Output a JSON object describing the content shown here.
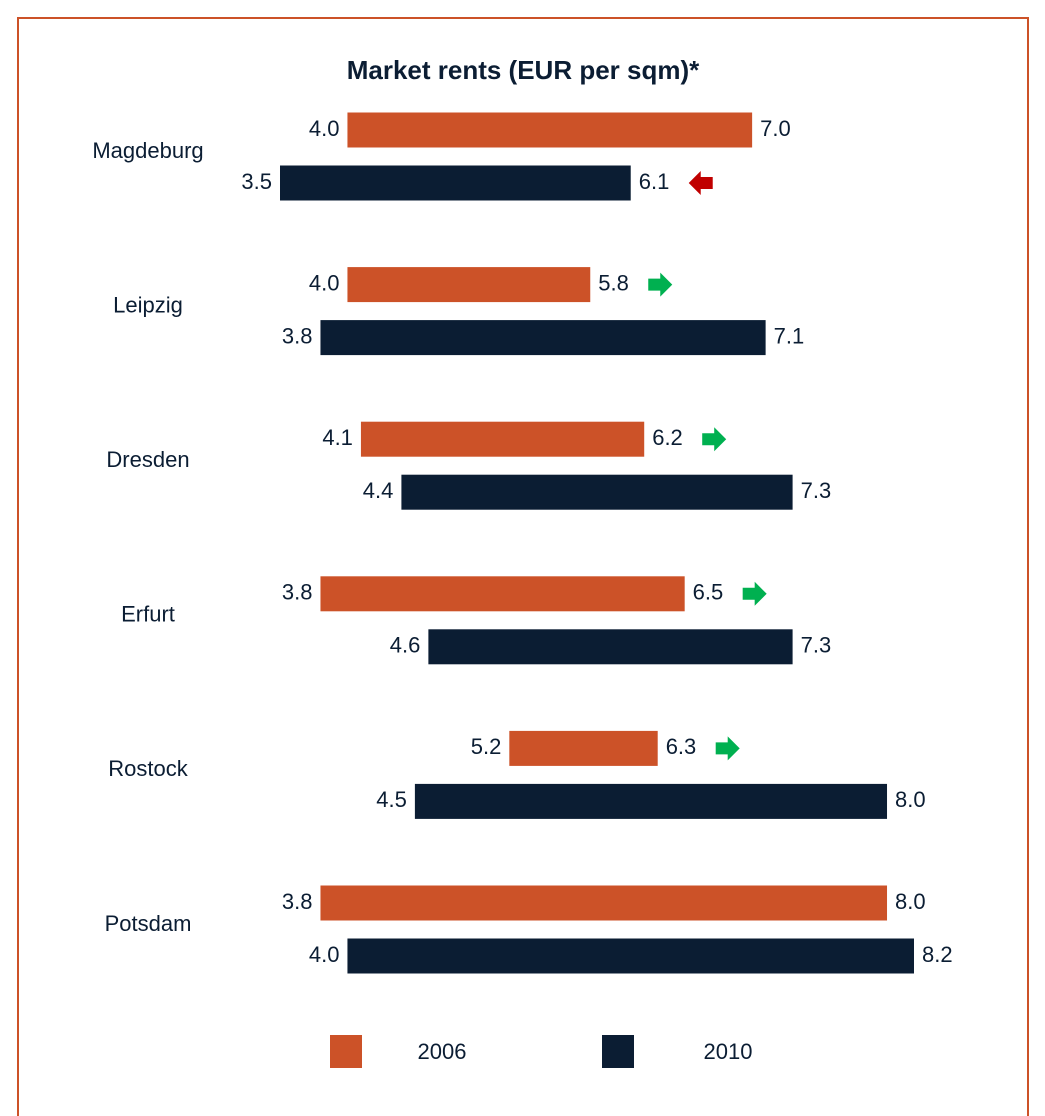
{
  "chart_data": {
    "type": "range-bar",
    "title": "Market rents (EUR per sqm)*",
    "categories": [
      "Magdeburg",
      "Leipzig",
      "Dresden",
      "Erfurt",
      "Rostock",
      "Potsdam"
    ],
    "series": [
      {
        "name": "2006",
        "color": "#cc5228",
        "low": [
          4.0,
          4.0,
          4.1,
          3.8,
          5.2,
          3.8
        ],
        "low_labels": [
          "4.0",
          "4.0",
          "4.1",
          "3.8",
          "5.2",
          "3.8"
        ],
        "high": [
          7.0,
          5.8,
          6.2,
          6.5,
          6.3,
          8.0
        ],
        "high_labels": [
          "7.0",
          "5.8",
          "6.2",
          "6.5",
          "6.3",
          "8.0"
        ],
        "trend": [
          null,
          "up",
          "up",
          "up",
          "up",
          null
        ]
      },
      {
        "name": "2010",
        "color": "#0b1d33",
        "low": [
          3.5,
          3.8,
          4.4,
          4.6,
          4.5,
          4.0
        ],
        "low_labels": [
          "3.5",
          "3.8",
          "4.4",
          "4.6",
          "4.5",
          "4.0"
        ],
        "high": [
          6.1,
          7.1,
          7.3,
          7.3,
          8.0,
          8.2
        ],
        "high_labels": [
          "6.1",
          "7.1",
          "7.3",
          "7.3",
          "8.0",
          "8.2"
        ],
        "trend": [
          "down",
          null,
          null,
          null,
          null,
          null
        ]
      }
    ],
    "trend_colors": {
      "up": "#00b050",
      "down": "#c00000"
    }
  }
}
